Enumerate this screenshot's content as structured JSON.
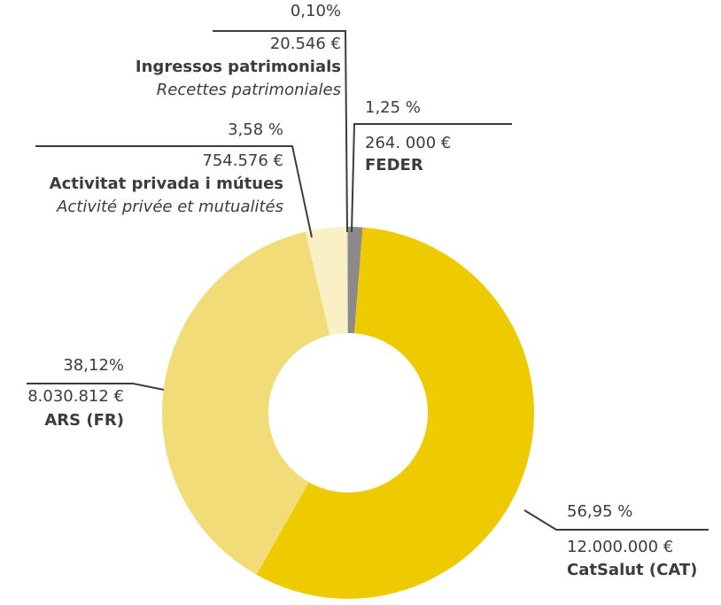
{
  "chart_data": {
    "type": "pie",
    "categories": [
      "FEDER",
      "CatSalut (CAT)",
      "ARS (FR)",
      "Activitat privada i mútues",
      "Ingressos patrimonials"
    ],
    "subnames": [
      null,
      null,
      null,
      "Activité privée et mutualités",
      "Recettes patrimoniales"
    ],
    "values": [
      1.25,
      56.95,
      38.12,
      3.58,
      0.1
    ],
    "value_labels": [
      "1,25 %",
      "56,95 %",
      "38,12%",
      "3,58 %",
      "0,10%"
    ],
    "amounts": [
      "264. 000 €",
      "12.000.000 €",
      "8.030.812 €",
      "754.576 €",
      "20.546 €"
    ],
    "colors": [
      "#8a8a8a",
      "#eecb00",
      "#f2dc78",
      "#faf0c6",
      "#bdbdbd"
    ]
  }
}
